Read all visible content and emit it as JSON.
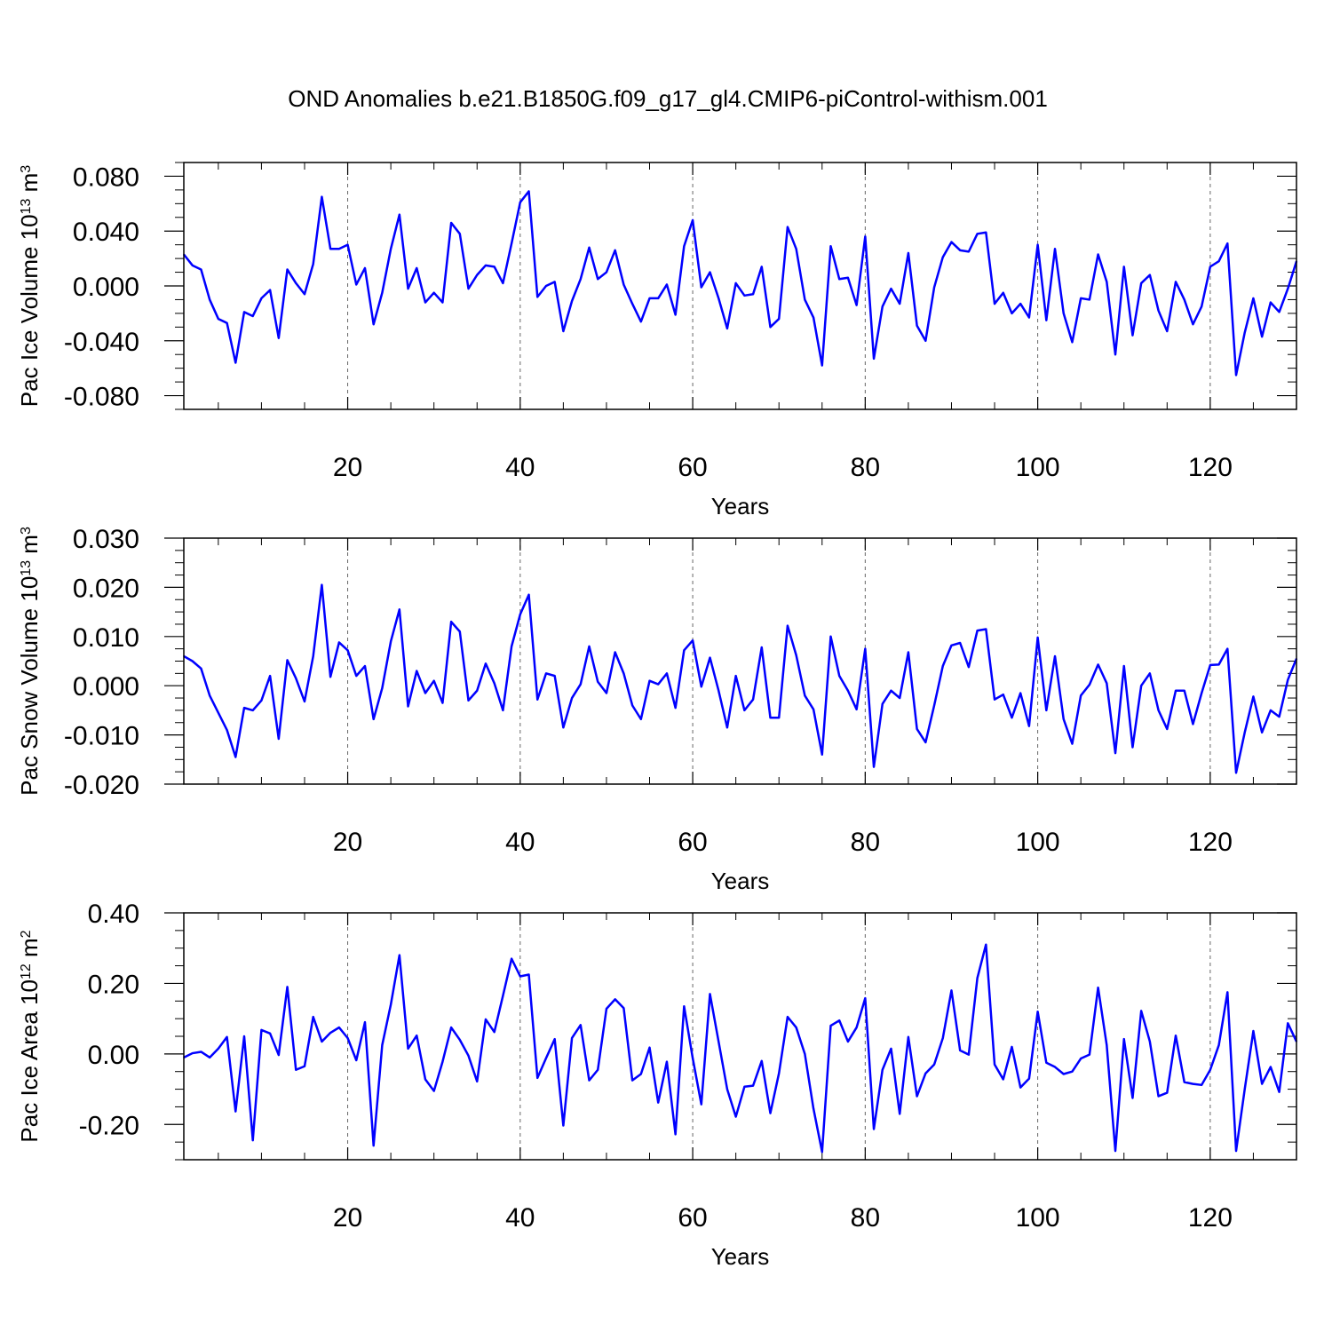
{
  "title": "OND Anomalies b.e21.B1850G.f09_g17_gl4.CMIP6-piControl-withism.001",
  "colors": {
    "line": "#0000ff",
    "axes": "#000000",
    "grid": "#666666"
  },
  "chart_data": [
    {
      "type": "line",
      "title": "OND Anomalies b.e21.B1850G.f09_g17_gl4.CMIP6-piControl-withism.001",
      "xlabel": "Years",
      "ylabel_main": "Pac Ice Volume 10",
      "ylabel_exp": "13",
      "ylabel_unit": " m",
      "ylabel_unit_exp": "3",
      "xlim": [
        1,
        130
      ],
      "ylim": [
        -0.09,
        0.09
      ],
      "x_ticks": [
        20,
        40,
        60,
        80,
        100,
        120
      ],
      "x_tick_labels": [
        "20",
        "40",
        "60",
        "80",
        "100",
        "120"
      ],
      "y_ticks": [
        -0.08,
        -0.04,
        0.0,
        0.04,
        0.08
      ],
      "y_tick_labels": [
        "-0.080",
        "-0.040",
        "0.000",
        "0.040",
        "0.080"
      ],
      "grid": "vertical dashed at major x ticks",
      "series": [
        {
          "name": "Pac Ice Volume",
          "color": "#0000ff",
          "values": [
            0.023,
            0.015,
            0.012,
            -0.01,
            -0.024,
            -0.027,
            -0.056,
            -0.019,
            -0.022,
            -0.009,
            -0.003,
            -0.038,
            0.012,
            0.002,
            -0.006,
            0.016,
            0.065,
            0.027,
            0.027,
            0.03,
            0.001,
            0.013,
            -0.028,
            -0.005,
            0.027,
            0.052,
            -0.002,
            0.013,
            -0.012,
            -0.005,
            -0.012,
            0.046,
            0.038,
            -0.002,
            0.008,
            0.015,
            0.014,
            0.002,
            0.031,
            0.061,
            0.069,
            -0.008,
            0.0,
            0.003,
            -0.033,
            -0.011,
            0.005,
            0.028,
            0.005,
            0.01,
            0.026,
            0.001,
            -0.013,
            -0.026,
            -0.009,
            -0.009,
            0.001,
            -0.021,
            0.029,
            0.048,
            -0.001,
            0.01,
            -0.009,
            -0.031,
            0.002,
            -0.007,
            -0.006,
            0.014,
            -0.03,
            -0.024,
            0.043,
            0.027,
            -0.01,
            -0.023,
            -0.058,
            0.029,
            0.005,
            0.006,
            -0.014,
            0.036,
            -0.053,
            -0.015,
            -0.002,
            -0.013,
            0.024,
            -0.029,
            -0.04,
            -0.001,
            0.021,
            0.032,
            0.026,
            0.025,
            0.038,
            0.039,
            -0.013,
            -0.005,
            -0.02,
            -0.013,
            -0.023,
            0.03,
            -0.025,
            0.027,
            -0.02,
            -0.041,
            -0.009,
            -0.01,
            0.023,
            0.003,
            -0.05,
            0.014,
            -0.036,
            0.002,
            0.008,
            -0.018,
            -0.033,
            0.003,
            -0.01,
            -0.028,
            -0.015,
            0.014,
            0.018,
            0.031,
            -0.065,
            -0.034,
            -0.009,
            -0.037,
            -0.012,
            -0.019,
            -0.002,
            0.018
          ]
        }
      ]
    },
    {
      "type": "line",
      "xlabel": "Years",
      "ylabel_main": "Pac Snow Volume 10",
      "ylabel_exp": "13",
      "ylabel_unit": " m",
      "ylabel_unit_exp": "3",
      "xlim": [
        1,
        130
      ],
      "ylim": [
        -0.02,
        0.03
      ],
      "x_ticks": [
        20,
        40,
        60,
        80,
        100,
        120
      ],
      "x_tick_labels": [
        "20",
        "40",
        "60",
        "80",
        "100",
        "120"
      ],
      "y_ticks": [
        -0.02,
        -0.01,
        0.0,
        0.01,
        0.02,
        0.03
      ],
      "y_tick_labels": [
        "-0.020",
        "-0.010",
        "0.000",
        "0.010",
        "0.020",
        "0.030"
      ],
      "grid": "vertical dashed at major x ticks",
      "series": [
        {
          "name": "Pac Snow Volume",
          "color": "#0000ff",
          "values": [
            0.006,
            0.005,
            0.0035,
            -0.002,
            -0.0055,
            -0.009,
            -0.0145,
            -0.0045,
            -0.005,
            -0.003,
            0.002,
            -0.0108,
            0.0052,
            0.0015,
            -0.0032,
            0.006,
            0.0205,
            0.0018,
            0.0088,
            0.0072,
            0.002,
            0.004,
            -0.0068,
            -0.0005,
            0.009,
            0.0155,
            -0.0042,
            0.003,
            -0.0015,
            0.001,
            -0.0035,
            0.013,
            0.011,
            -0.003,
            -0.001,
            0.0045,
            0.0005,
            -0.005,
            0.008,
            0.0145,
            0.0185,
            -0.0028,
            0.0025,
            0.002,
            -0.0085,
            -0.0025,
            0.0003,
            0.008,
            0.0008,
            -0.0015,
            0.0068,
            0.0025,
            -0.004,
            -0.0068,
            0.001,
            0.0003,
            0.0025,
            -0.0045,
            0.0072,
            0.0092,
            -0.0002,
            0.0057,
            -0.001,
            -0.0085,
            0.002,
            -0.005,
            -0.0028,
            0.0078,
            -0.0065,
            -0.0065,
            0.0122,
            0.0062,
            -0.002,
            -0.0048,
            -0.014,
            0.01,
            0.002,
            -0.001,
            -0.0048,
            0.0075,
            -0.0165,
            -0.0037,
            -0.001,
            -0.0025,
            0.0068,
            -0.0088,
            -0.0115,
            -0.004,
            0.004,
            0.0082,
            0.0087,
            0.0038,
            0.0112,
            0.0115,
            -0.0028,
            -0.0018,
            -0.0065,
            -0.0015,
            -0.0082,
            0.0098,
            -0.005,
            0.006,
            -0.0068,
            -0.0118,
            -0.002,
            0.0002,
            0.0043,
            0.0005,
            -0.0137,
            0.004,
            -0.0125,
            0.0,
            0.0025,
            -0.005,
            -0.0088,
            -0.001,
            -0.001,
            -0.0078,
            -0.0015,
            0.0042,
            0.0043,
            0.0075,
            -0.0177,
            -0.0095,
            -0.0022,
            -0.0095,
            -0.005,
            -0.0063,
            0.0012,
            0.0055
          ]
        }
      ]
    },
    {
      "type": "line",
      "xlabel": "Years",
      "ylabel_main": "Pac Ice Area 10",
      "ylabel_exp": "12",
      "ylabel_unit": " m",
      "ylabel_unit_exp": "2",
      "xlim": [
        1,
        130
      ],
      "ylim": [
        -0.3,
        0.4
      ],
      "x_ticks": [
        20,
        40,
        60,
        80,
        100,
        120
      ],
      "x_tick_labels": [
        "20",
        "40",
        "60",
        "80",
        "100",
        "120"
      ],
      "y_ticks": [
        -0.2,
        0.0,
        0.2,
        0.4
      ],
      "y_tick_labels": [
        "-0.20",
        "0.00",
        "0.20",
        "0.40"
      ],
      "grid": "vertical dashed at major x ticks",
      "series": [
        {
          "name": "Pac Ice Area",
          "color": "#0000ff",
          "values": [
            -0.01,
            0.002,
            0.006,
            -0.01,
            0.015,
            0.048,
            -0.163,
            0.05,
            -0.245,
            0.068,
            0.058,
            -0.003,
            0.19,
            -0.045,
            -0.035,
            0.105,
            0.035,
            0.06,
            0.075,
            0.045,
            -0.018,
            0.09,
            -0.26,
            0.025,
            0.14,
            0.28,
            0.015,
            0.052,
            -0.072,
            -0.105,
            -0.022,
            0.075,
            0.04,
            -0.005,
            -0.078,
            0.098,
            0.062,
            0.165,
            0.27,
            0.22,
            0.225,
            -0.068,
            -0.012,
            0.042,
            -0.203,
            0.045,
            0.082,
            -0.075,
            -0.045,
            0.128,
            0.155,
            0.13,
            -0.075,
            -0.057,
            0.018,
            -0.138,
            -0.022,
            -0.228,
            0.135,
            -0.012,
            -0.143,
            0.17,
            0.035,
            -0.1,
            -0.178,
            -0.093,
            -0.09,
            -0.02,
            -0.168,
            -0.055,
            0.105,
            0.075,
            0.0,
            -0.155,
            -0.278,
            0.08,
            0.095,
            0.035,
            0.075,
            0.158,
            -0.213,
            -0.045,
            0.015,
            -0.17,
            0.048,
            -0.12,
            -0.055,
            -0.03,
            0.045,
            0.18,
            0.01,
            -0.002,
            0.215,
            0.31,
            -0.03,
            -0.072,
            0.02,
            -0.095,
            -0.07,
            0.12,
            -0.025,
            -0.037,
            -0.057,
            -0.05,
            -0.013,
            -0.002,
            0.188,
            0.025,
            -0.275,
            0.042,
            -0.125,
            0.122,
            0.035,
            -0.12,
            -0.11,
            0.052,
            -0.08,
            -0.085,
            -0.088,
            -0.045,
            0.025,
            0.175,
            -0.275,
            -0.1,
            0.065,
            -0.085,
            -0.037,
            -0.108,
            0.087,
            0.035
          ]
        }
      ]
    }
  ]
}
